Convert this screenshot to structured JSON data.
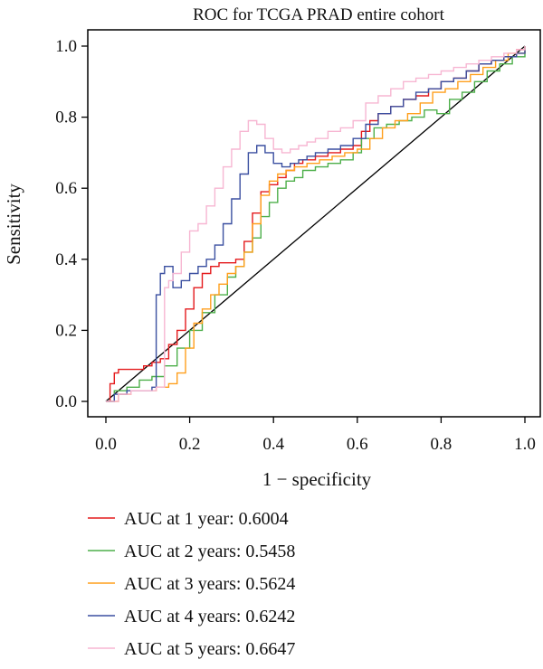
{
  "chart_data": {
    "type": "line",
    "title": "ROC for TCGA PRAD entire cohort",
    "xlabel": "1 − specificity",
    "ylabel": "Sensitivity",
    "xlim": [
      0,
      1
    ],
    "ylim": [
      0,
      1
    ],
    "xticks": [
      "0.0",
      "0.2",
      "0.4",
      "0.6",
      "0.8",
      "1.0"
    ],
    "yticks": [
      "0.0",
      "0.2",
      "0.4",
      "0.6",
      "0.8",
      "1.0"
    ],
    "grid": false,
    "legend_position": "bottom",
    "reference_line": {
      "x": [
        0,
        1
      ],
      "y": [
        0,
        1
      ],
      "color": "#000000"
    },
    "series": [
      {
        "name": "AUC at 1 year: 0.6004",
        "color": "#e41a1c",
        "x": [
          0,
          0.01,
          0.02,
          0.03,
          0.05,
          0.07,
          0.09,
          0.11,
          0.13,
          0.15,
          0.17,
          0.19,
          0.21,
          0.23,
          0.25,
          0.27,
          0.29,
          0.31,
          0.33,
          0.35,
          0.37,
          0.39,
          0.41,
          0.43,
          0.45,
          0.47,
          0.5,
          0.53,
          0.56,
          0.59,
          0.61,
          0.63,
          0.65,
          0.68,
          0.71,
          0.74,
          0.77,
          0.8,
          0.83,
          0.86,
          0.89,
          0.92,
          0.95,
          0.98,
          1
        ],
        "y": [
          0,
          0.05,
          0.08,
          0.09,
          0.09,
          0.09,
          0.1,
          0.11,
          0.12,
          0.16,
          0.2,
          0.26,
          0.32,
          0.36,
          0.38,
          0.39,
          0.39,
          0.4,
          0.45,
          0.53,
          0.59,
          0.61,
          0.63,
          0.65,
          0.67,
          0.68,
          0.69,
          0.7,
          0.71,
          0.72,
          0.76,
          0.79,
          0.81,
          0.83,
          0.85,
          0.86,
          0.88,
          0.9,
          0.91,
          0.93,
          0.95,
          0.96,
          0.97,
          0.99,
          1
        ]
      },
      {
        "name": "AUC at 2 years: 0.5458",
        "color": "#4daf4a",
        "x": [
          0,
          0.02,
          0.05,
          0.08,
          0.11,
          0.14,
          0.17,
          0.2,
          0.23,
          0.26,
          0.29,
          0.31,
          0.33,
          0.35,
          0.37,
          0.39,
          0.41,
          0.43,
          0.45,
          0.47,
          0.5,
          0.53,
          0.56,
          0.59,
          0.61,
          0.64,
          0.67,
          0.7,
          0.73,
          0.76,
          0.79,
          0.82,
          0.85,
          0.88,
          0.91,
          0.94,
          0.97,
          1
        ],
        "y": [
          0,
          0.03,
          0.04,
          0.06,
          0.07,
          0.1,
          0.15,
          0.2,
          0.25,
          0.3,
          0.35,
          0.38,
          0.42,
          0.46,
          0.52,
          0.56,
          0.6,
          0.62,
          0.63,
          0.65,
          0.66,
          0.67,
          0.68,
          0.7,
          0.74,
          0.77,
          0.78,
          0.79,
          0.8,
          0.82,
          0.81,
          0.85,
          0.87,
          0.9,
          0.93,
          0.95,
          0.97,
          1
        ]
      },
      {
        "name": "AUC at 3 years: 0.5624",
        "color": "#ff9f1c",
        "x": [
          0,
          0.03,
          0.06,
          0.09,
          0.12,
          0.15,
          0.17,
          0.19,
          0.21,
          0.23,
          0.25,
          0.27,
          0.29,
          0.31,
          0.33,
          0.35,
          0.37,
          0.39,
          0.41,
          0.43,
          0.45,
          0.48,
          0.51,
          0.54,
          0.57,
          0.6,
          0.63,
          0.66,
          0.69,
          0.72,
          0.75,
          0.78,
          0.81,
          0.84,
          0.87,
          0.9,
          0.93,
          0.96,
          1
        ],
        "y": [
          0,
          0.02,
          0.03,
          0.03,
          0.04,
          0.05,
          0.08,
          0.15,
          0.22,
          0.26,
          0.3,
          0.33,
          0.36,
          0.38,
          0.42,
          0.5,
          0.58,
          0.62,
          0.64,
          0.65,
          0.66,
          0.67,
          0.68,
          0.69,
          0.7,
          0.71,
          0.74,
          0.77,
          0.79,
          0.81,
          0.84,
          0.87,
          0.88,
          0.9,
          0.92,
          0.94,
          0.96,
          0.98,
          1
        ]
      },
      {
        "name": "AUC at 4 years: 0.6242",
        "color": "#3a4fa0",
        "x": [
          0,
          0.02,
          0.05,
          0.08,
          0.11,
          0.12,
          0.13,
          0.14,
          0.16,
          0.18,
          0.2,
          0.22,
          0.24,
          0.26,
          0.28,
          0.3,
          0.32,
          0.34,
          0.36,
          0.38,
          0.4,
          0.42,
          0.44,
          0.46,
          0.48,
          0.5,
          0.53,
          0.56,
          0.59,
          0.62,
          0.65,
          0.68,
          0.71,
          0.74,
          0.77,
          0.8,
          0.83,
          0.86,
          0.89,
          0.92,
          0.95,
          0.98,
          1
        ],
        "y": [
          0,
          0.02,
          0.03,
          0.03,
          0.04,
          0.3,
          0.36,
          0.38,
          0.32,
          0.34,
          0.36,
          0.38,
          0.4,
          0.44,
          0.5,
          0.57,
          0.64,
          0.7,
          0.72,
          0.7,
          0.67,
          0.66,
          0.67,
          0.68,
          0.69,
          0.7,
          0.71,
          0.72,
          0.74,
          0.78,
          0.81,
          0.83,
          0.85,
          0.87,
          0.88,
          0.9,
          0.91,
          0.93,
          0.95,
          0.96,
          0.97,
          0.98,
          1
        ]
      },
      {
        "name": "AUC at 5 years: 0.6647",
        "color": "#f7b6d2",
        "x": [
          0,
          0.03,
          0.06,
          0.09,
          0.12,
          0.14,
          0.15,
          0.16,
          0.18,
          0.2,
          0.22,
          0.24,
          0.26,
          0.28,
          0.3,
          0.32,
          0.34,
          0.36,
          0.38,
          0.4,
          0.42,
          0.44,
          0.46,
          0.48,
          0.5,
          0.53,
          0.56,
          0.59,
          0.62,
          0.65,
          0.68,
          0.71,
          0.74,
          0.77,
          0.8,
          0.83,
          0.86,
          0.89,
          0.92,
          0.95,
          0.98,
          1
        ],
        "y": [
          0,
          0.02,
          0.03,
          0.03,
          0.04,
          0.32,
          0.34,
          0.36,
          0.42,
          0.48,
          0.5,
          0.55,
          0.6,
          0.66,
          0.71,
          0.76,
          0.79,
          0.78,
          0.74,
          0.71,
          0.7,
          0.71,
          0.72,
          0.73,
          0.74,
          0.76,
          0.77,
          0.79,
          0.84,
          0.86,
          0.88,
          0.9,
          0.91,
          0.92,
          0.93,
          0.94,
          0.95,
          0.96,
          0.97,
          0.98,
          0.99,
          1
        ]
      }
    ]
  }
}
